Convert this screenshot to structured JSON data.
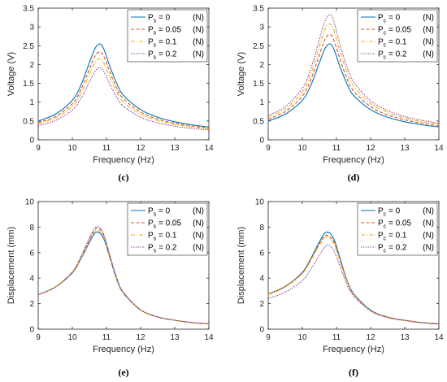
{
  "chart_data": [
    {
      "type": "line",
      "panel_label": "(c)",
      "xlabel": "Frequency (Hz)",
      "ylabel": "Voltage (V)",
      "xlim": [
        9,
        14
      ],
      "ylim": [
        0,
        3.5
      ],
      "xticks": [
        "9",
        "10",
        "11",
        "12",
        "13",
        "14"
      ],
      "yticks": [
        "0",
        "0.5",
        "1",
        "1.5",
        "2",
        "2.5",
        "3",
        "3.5"
      ],
      "grid": false,
      "legend_position": "top-right",
      "x": [
        9,
        9.5,
        10,
        10.25,
        10.5,
        10.65,
        10.75,
        10.85,
        10.95,
        11.1,
        11.3,
        11.5,
        12,
        12.5,
        13,
        13.5,
        14
      ],
      "series": [
        {
          "sym": "P",
          "sub": "s",
          "rest": " = 0",
          "unit": "(N)",
          "color": "#0072BD",
          "dash": "solid",
          "values": [
            0.5,
            0.68,
            1.05,
            1.45,
            2.05,
            2.4,
            2.53,
            2.53,
            2.35,
            1.95,
            1.5,
            1.18,
            0.8,
            0.6,
            0.48,
            0.4,
            0.34
          ]
        },
        {
          "sym": "P",
          "sub": "s",
          "rest": " = 0.05",
          "unit": "(N)",
          "color": "#D95319",
          "dash": "dashed",
          "values": [
            0.46,
            0.62,
            0.96,
            1.33,
            1.88,
            2.2,
            2.32,
            2.32,
            2.16,
            1.8,
            1.38,
            1.09,
            0.74,
            0.55,
            0.44,
            0.37,
            0.31
          ]
        },
        {
          "sym": "P",
          "sub": "s",
          "rest": " = 0.1",
          "unit": "(N)",
          "color": "#EDB120",
          "dash": "dashdot",
          "values": [
            0.43,
            0.58,
            0.89,
            1.23,
            1.74,
            2.03,
            2.14,
            2.14,
            1.99,
            1.66,
            1.27,
            1.0,
            0.68,
            0.51,
            0.41,
            0.34,
            0.29
          ]
        },
        {
          "sym": "P",
          "sub": "s",
          "rest": " = 0.2",
          "unit": "(N)",
          "color": "#7E2F8E",
          "dash": "dotted",
          "values": [
            0.38,
            0.51,
            0.79,
            1.09,
            1.54,
            1.8,
            1.9,
            1.9,
            1.77,
            1.47,
            1.13,
            0.89,
            0.6,
            0.45,
            0.36,
            0.3,
            0.26
          ]
        }
      ]
    },
    {
      "type": "line",
      "panel_label": "(d)",
      "xlabel": "Frequency (Hz)",
      "ylabel": "Voltage (V)",
      "xlim": [
        9,
        14
      ],
      "ylim": [
        0,
        3.5
      ],
      "xticks": [
        "9",
        "10",
        "11",
        "12",
        "13",
        "14"
      ],
      "yticks": [
        "0",
        "0.5",
        "1",
        "1.5",
        "2",
        "2.5",
        "3",
        "3.5"
      ],
      "grid": false,
      "legend_position": "top-right",
      "x": [
        9,
        9.5,
        10,
        10.25,
        10.5,
        10.65,
        10.75,
        10.85,
        10.95,
        11.1,
        11.3,
        11.5,
        12,
        12.5,
        13,
        13.5,
        14
      ],
      "series": [
        {
          "sym": "P",
          "sub": "c",
          "rest": " = 0",
          "unit": "(N)",
          "color": "#0072BD",
          "dash": "solid",
          "values": [
            0.5,
            0.68,
            1.05,
            1.45,
            2.05,
            2.4,
            2.53,
            2.53,
            2.35,
            1.95,
            1.5,
            1.18,
            0.8,
            0.6,
            0.48,
            0.4,
            0.34
          ]
        },
        {
          "sym": "P",
          "sub": "c",
          "rest": " = 0.05",
          "unit": "(N)",
          "color": "#D95319",
          "dash": "dashed",
          "values": [
            0.55,
            0.75,
            1.16,
            1.6,
            2.26,
            2.64,
            2.78,
            2.78,
            2.58,
            2.15,
            1.65,
            1.3,
            0.88,
            0.66,
            0.53,
            0.44,
            0.37
          ]
        },
        {
          "sym": "P",
          "sub": "c",
          "rest": " = 0.1",
          "unit": "(N)",
          "color": "#EDB120",
          "dash": "dashdot",
          "values": [
            0.6,
            0.82,
            1.27,
            1.75,
            2.48,
            2.9,
            3.06,
            3.06,
            2.84,
            2.36,
            1.82,
            1.43,
            0.97,
            0.73,
            0.58,
            0.48,
            0.41
          ]
        },
        {
          "sym": "P",
          "sub": "c",
          "rest": " = 0.2",
          "unit": "(N)",
          "color": "#7E2F8E",
          "dash": "dotted",
          "values": [
            0.65,
            0.88,
            1.37,
            1.89,
            2.67,
            3.12,
            3.3,
            3.3,
            3.06,
            2.54,
            1.96,
            1.54,
            1.04,
            0.78,
            0.62,
            0.52,
            0.44
          ]
        }
      ]
    },
    {
      "type": "line",
      "panel_label": "(e)",
      "xlabel": "Frequency (Hz)",
      "ylabel": "Displacement (mm)",
      "xlim": [
        9,
        14
      ],
      "ylim": [
        0,
        10
      ],
      "xticks": [
        "9",
        "10",
        "11",
        "12",
        "13",
        "14"
      ],
      "yticks": [
        "0",
        "2",
        "4",
        "6",
        "8",
        "10"
      ],
      "grid": false,
      "legend_position": "top-right",
      "x": [
        9,
        9.5,
        10,
        10.25,
        10.5,
        10.65,
        10.75,
        10.85,
        10.95,
        11.1,
        11.3,
        11.5,
        12,
        12.5,
        13,
        13.5,
        14
      ],
      "series": [
        {
          "sym": "P",
          "sub": "s",
          "rest": " = 0",
          "unit": "(N)",
          "color": "#0072BD",
          "dash": "solid",
          "values": [
            2.7,
            3.3,
            4.4,
            5.5,
            6.8,
            7.5,
            7.6,
            7.4,
            6.9,
            5.6,
            3.9,
            2.8,
            1.5,
            0.95,
            0.7,
            0.52,
            0.42
          ]
        },
        {
          "sym": "P",
          "sub": "s",
          "rest": " = 0.05",
          "unit": "(N)",
          "color": "#D95319",
          "dash": "dashed",
          "values": [
            2.7,
            3.3,
            4.45,
            5.6,
            7.0,
            7.75,
            7.95,
            7.7,
            7.1,
            5.75,
            4.0,
            2.85,
            1.52,
            0.96,
            0.7,
            0.52,
            0.42
          ]
        },
        {
          "sym": "P",
          "sub": "s",
          "rest": " = 0.1",
          "unit": "(N)",
          "color": "#EDB120",
          "dash": "dashdot",
          "values": [
            2.7,
            3.3,
            4.4,
            5.55,
            6.9,
            7.6,
            7.75,
            7.5,
            7.0,
            5.65,
            3.95,
            2.82,
            1.5,
            0.95,
            0.7,
            0.52,
            0.42
          ]
        },
        {
          "sym": "P",
          "sub": "s",
          "rest": " = 0.2",
          "unit": "(N)",
          "color": "#7E2F8E",
          "dash": "dotted",
          "values": [
            2.7,
            3.3,
            4.5,
            5.7,
            7.15,
            7.9,
            8.05,
            7.8,
            7.2,
            5.8,
            4.05,
            2.88,
            1.53,
            0.97,
            0.7,
            0.52,
            0.42
          ]
        }
      ]
    },
    {
      "type": "line",
      "panel_label": "(f)",
      "xlabel": "Frequency (Hz)",
      "ylabel": "Displacement (mm)",
      "xlim": [
        9,
        14
      ],
      "ylim": [
        0,
        10
      ],
      "xticks": [
        "9",
        "10",
        "11",
        "12",
        "13",
        "14"
      ],
      "yticks": [
        "0",
        "2",
        "4",
        "6",
        "8",
        "10"
      ],
      "grid": false,
      "legend_position": "top-right",
      "x": [
        9,
        9.5,
        10,
        10.25,
        10.5,
        10.65,
        10.75,
        10.85,
        10.95,
        11.1,
        11.3,
        11.5,
        12,
        12.5,
        13,
        13.5,
        14
      ],
      "series": [
        {
          "sym": "P",
          "sub": "c",
          "rest": " = 0",
          "unit": "(N)",
          "color": "#0072BD",
          "dash": "solid",
          "values": [
            2.75,
            3.35,
            4.45,
            5.55,
            6.85,
            7.5,
            7.6,
            7.4,
            6.9,
            5.6,
            3.9,
            2.8,
            1.5,
            0.95,
            0.7,
            0.52,
            0.42
          ]
        },
        {
          "sym": "P",
          "sub": "c",
          "rest": " = 0.05",
          "unit": "(N)",
          "color": "#D95319",
          "dash": "dashed",
          "values": [
            2.75,
            3.35,
            4.4,
            5.45,
            6.7,
            7.3,
            7.35,
            7.15,
            6.7,
            5.45,
            3.85,
            2.75,
            1.48,
            0.94,
            0.7,
            0.52,
            0.42
          ]
        },
        {
          "sym": "P",
          "sub": "c",
          "rest": " = 0.1",
          "unit": "(N)",
          "color": "#EDB120",
          "dash": "dashdot",
          "values": [
            2.7,
            3.3,
            4.35,
            5.4,
            6.6,
            7.15,
            7.2,
            7.0,
            6.55,
            5.35,
            3.8,
            2.72,
            1.46,
            0.93,
            0.69,
            0.51,
            0.41
          ]
        },
        {
          "sym": "P",
          "sub": "c",
          "rest": " = 0.2",
          "unit": "(N)",
          "color": "#7E2F8E",
          "dash": "dotted",
          "values": [
            2.4,
            2.9,
            3.8,
            4.7,
            5.8,
            6.4,
            6.6,
            6.45,
            6.0,
            4.95,
            3.55,
            2.6,
            1.42,
            0.9,
            0.67,
            0.5,
            0.4
          ]
        }
      ]
    }
  ]
}
